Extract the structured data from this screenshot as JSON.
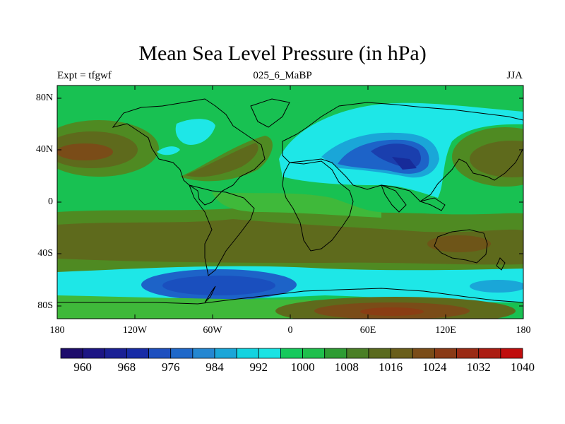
{
  "title": "Mean Sea Level Pressure (in hPa)",
  "subtitle_left": "Expt = tfgwf",
  "subtitle_center": "025_6_MaBP",
  "subtitle_right": "JJA",
  "lat_ticks": [
    "80N",
    "40N",
    "0",
    "40S",
    "80S"
  ],
  "lon_ticks": [
    "180",
    "120W",
    "60W",
    "0",
    "60E",
    "120E",
    "180"
  ],
  "colorbar": {
    "colors": [
      "#1d0c6b",
      "#1c1584",
      "#1a2095",
      "#172ba6",
      "#1d4fbf",
      "#1f68c9",
      "#2487d1",
      "#1aa6d8",
      "#12d3e0",
      "#19e3e3",
      "#16c95c",
      "#1fbf4c",
      "#2e9c33",
      "#4a7f26",
      "#5a6a1e",
      "#6a5e1a",
      "#7a4c18",
      "#8a3a16",
      "#9a2a14",
      "#ab1c12",
      "#c00d0d"
    ],
    "labels": [
      "960",
      "968",
      "976",
      "984",
      "992",
      "1000",
      "1008",
      "1016",
      "1024",
      "1032",
      "1040"
    ]
  },
  "colors": {
    "background_green": "#18c152",
    "pale_green": "#3fb93a",
    "olive": "#5e6e1d",
    "brown_red": "#8a3d14",
    "cyan": "#1ee7e7",
    "blue": "#1d63c8",
    "dark_blue": "#1a3fae"
  }
}
